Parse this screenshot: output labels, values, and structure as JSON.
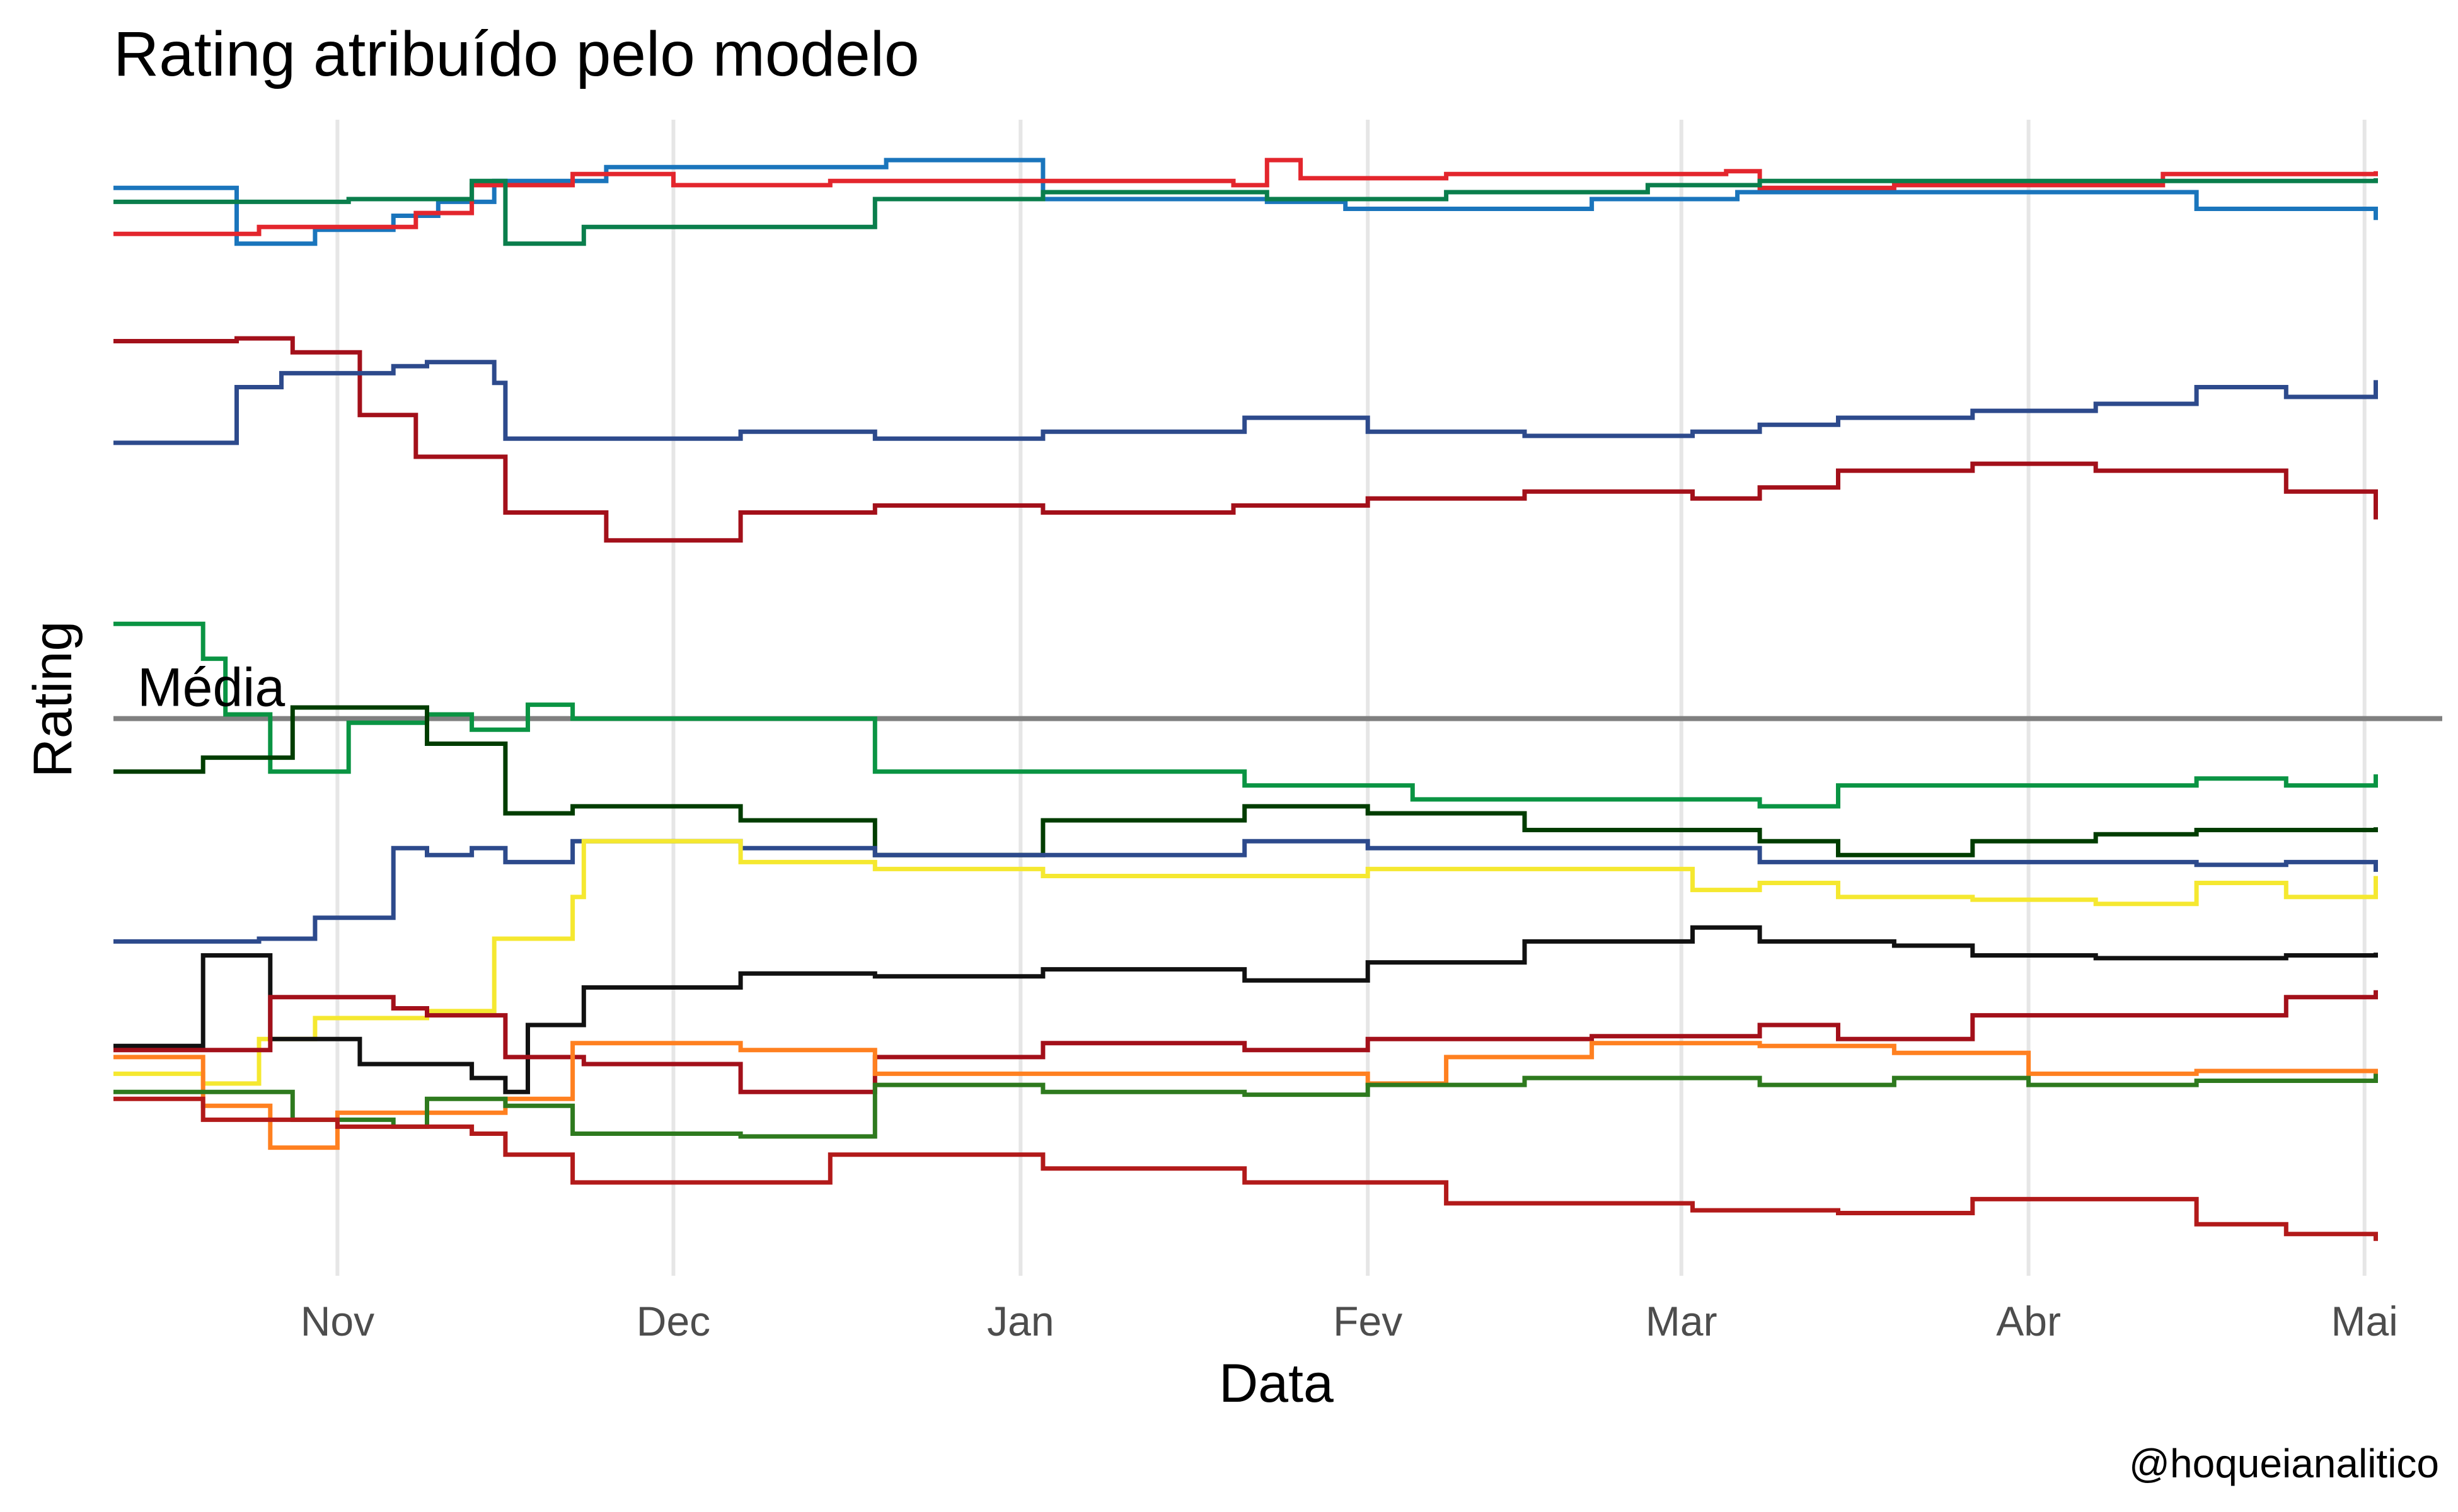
{
  "chart_data": {
    "type": "line",
    "line_style": "step",
    "title": "Rating atribuído pelo modelo",
    "xlabel": "Data",
    "ylabel": "Rating",
    "caption": "@hoqueianalitico",
    "reference_line": {
      "y": 0,
      "label": "Média"
    },
    "x_ticks": [
      "2021-11-01",
      "2021-12-01",
      "2022-01-01",
      "2022-02-01",
      "2022-03-01",
      "2022-04-01",
      "2022-05-01"
    ],
    "x_tick_labels": [
      "Nov",
      "Dec",
      "Jan",
      "Fev",
      "Mar",
      "Abr",
      "Mai"
    ],
    "xlim": [
      "2021-10-12",
      "2022-05-04"
    ],
    "ylim": [
      -400,
      430
    ],
    "y_ticks_shown": false,
    "grid": "vertical major only",
    "legend": "none",
    "series": [
      {
        "color": "#1a75bc",
        "points": [
          [
            "2021-10-12",
            381
          ],
          [
            "2021-10-23",
            341
          ],
          [
            "2021-10-30",
            351
          ],
          [
            "2021-11-06",
            361
          ],
          [
            "2021-11-10",
            371
          ],
          [
            "2021-11-15",
            386
          ],
          [
            "2021-11-25",
            396
          ],
          [
            "2021-12-20",
            401
          ],
          [
            "2022-01-03",
            373
          ],
          [
            "2022-01-23",
            371
          ],
          [
            "2022-01-30",
            366
          ],
          [
            "2022-02-21",
            373
          ],
          [
            "2022-03-06",
            378
          ],
          [
            "2022-03-28",
            378
          ],
          [
            "2022-04-01",
            378
          ],
          [
            "2022-04-16",
            366
          ],
          [
            "2022-05-02",
            358
          ]
        ]
      },
      {
        "color": "#e3262d",
        "points": [
          [
            "2021-10-12",
            348
          ],
          [
            "2021-10-25",
            353
          ],
          [
            "2021-11-08",
            363
          ],
          [
            "2021-11-13",
            383
          ],
          [
            "2021-11-22",
            391
          ],
          [
            "2021-12-01",
            383
          ],
          [
            "2021-12-15",
            386
          ],
          [
            "2022-01-20",
            383
          ],
          [
            "2022-01-23",
            401
          ],
          [
            "2022-01-26",
            388
          ],
          [
            "2022-02-08",
            391
          ],
          [
            "2022-03-05",
            393
          ],
          [
            "2022-03-08",
            381
          ],
          [
            "2022-03-20",
            383
          ],
          [
            "2022-04-07",
            383
          ],
          [
            "2022-04-13",
            391
          ],
          [
            "2022-05-02",
            393
          ]
        ]
      },
      {
        "color": "#0a7e4c",
        "points": [
          [
            "2021-10-12",
            371
          ],
          [
            "2021-11-02",
            373
          ],
          [
            "2021-11-13",
            386
          ],
          [
            "2021-11-16",
            341
          ],
          [
            "2021-11-23",
            353
          ],
          [
            "2021-12-19",
            373
          ],
          [
            "2022-01-03",
            378
          ],
          [
            "2022-01-23",
            373
          ],
          [
            "2022-02-08",
            378
          ],
          [
            "2022-02-26",
            383
          ],
          [
            "2022-03-08",
            386
          ],
          [
            "2022-03-23",
            386
          ],
          [
            "2022-04-16",
            386
          ],
          [
            "2022-05-02",
            388
          ]
        ]
      },
      {
        "color": "#a3101a",
        "points": [
          [
            "2021-10-12",
            271
          ],
          [
            "2021-10-23",
            273
          ],
          [
            "2021-10-28",
            263
          ],
          [
            "2021-11-03",
            218
          ],
          [
            "2021-11-08",
            188
          ],
          [
            "2021-11-16",
            148
          ],
          [
            "2021-11-25",
            128
          ],
          [
            "2021-12-07",
            148
          ],
          [
            "2021-12-19",
            153
          ],
          [
            "2022-01-03",
            148
          ],
          [
            "2022-01-20",
            153
          ],
          [
            "2022-02-01",
            158
          ],
          [
            "2022-02-15",
            163
          ],
          [
            "2022-03-02",
            158
          ],
          [
            "2022-03-08",
            166
          ],
          [
            "2022-03-15",
            178
          ],
          [
            "2022-03-27",
            183
          ],
          [
            "2022-04-07",
            178
          ],
          [
            "2022-04-24",
            163
          ],
          [
            "2022-05-02",
            143
          ]
        ]
      },
      {
        "color": "#2d4a8c",
        "points": [
          [
            "2021-10-12",
            198
          ],
          [
            "2021-10-23",
            238
          ],
          [
            "2021-10-27",
            248
          ],
          [
            "2021-11-06",
            253
          ],
          [
            "2021-11-09",
            256
          ],
          [
            "2021-11-15",
            241
          ],
          [
            "2021-11-16",
            201
          ],
          [
            "2021-12-07",
            206
          ],
          [
            "2021-12-19",
            201
          ],
          [
            "2022-01-03",
            206
          ],
          [
            "2022-01-21",
            216
          ],
          [
            "2022-02-01",
            206
          ],
          [
            "2022-02-15",
            203
          ],
          [
            "2022-03-02",
            206
          ],
          [
            "2022-03-08",
            211
          ],
          [
            "2022-03-15",
            216
          ],
          [
            "2022-03-27",
            221
          ],
          [
            "2022-04-07",
            226
          ],
          [
            "2022-04-16",
            238
          ],
          [
            "2022-04-24",
            231
          ],
          [
            "2022-05-02",
            243
          ]
        ]
      },
      {
        "color": "#0a9443",
        "points": [
          [
            "2021-10-12",
            68
          ],
          [
            "2021-10-20",
            43
          ],
          [
            "2021-10-22",
            3
          ],
          [
            "2021-10-26",
            -38
          ],
          [
            "2021-11-02",
            -3
          ],
          [
            "2021-11-09",
            3
          ],
          [
            "2021-11-13",
            -8
          ],
          [
            "2021-11-16",
            -8
          ],
          [
            "2021-11-18",
            10
          ],
          [
            "2021-11-22",
            0
          ],
          [
            "2021-12-19",
            -38
          ],
          [
            "2022-01-21",
            -48
          ],
          [
            "2022-02-05",
            -58
          ],
          [
            "2022-03-08",
            -63
          ],
          [
            "2022-03-15",
            -48
          ],
          [
            "2022-04-16",
            -43
          ],
          [
            "2022-04-24",
            -48
          ],
          [
            "2022-05-02",
            -40
          ]
        ]
      },
      {
        "color": "#003d00",
        "points": [
          [
            "2021-10-12",
            -38
          ],
          [
            "2021-10-20",
            -28
          ],
          [
            "2021-10-28",
            8
          ],
          [
            "2021-11-09",
            -18
          ],
          [
            "2021-11-16",
            -68
          ],
          [
            "2021-11-22",
            -63
          ],
          [
            "2021-12-07",
            -73
          ],
          [
            "2021-12-19",
            -98
          ],
          [
            "2022-01-03",
            -73
          ],
          [
            "2022-01-21",
            -63
          ],
          [
            "2022-02-01",
            -68
          ],
          [
            "2022-02-15",
            -80
          ],
          [
            "2022-03-08",
            -88
          ],
          [
            "2022-03-15",
            -98
          ],
          [
            "2022-03-27",
            -88
          ],
          [
            "2022-04-07",
            -83
          ],
          [
            "2022-04-16",
            -80
          ],
          [
            "2022-05-02",
            -78
          ]
        ]
      },
      {
        "color": "#2d4a8c",
        "points": [
          [
            "2021-10-12",
            -160
          ],
          [
            "2021-10-25",
            -158
          ],
          [
            "2021-10-30",
            -143
          ],
          [
            "2021-11-06",
            -93
          ],
          [
            "2021-11-09",
            -98
          ],
          [
            "2021-11-13",
            -93
          ],
          [
            "2021-11-16",
            -103
          ],
          [
            "2021-11-22",
            -88
          ],
          [
            "2021-12-07",
            -93
          ],
          [
            "2021-12-19",
            -98
          ],
          [
            "2022-01-21",
            -88
          ],
          [
            "2022-02-01",
            -93
          ],
          [
            "2022-02-15",
            -93
          ],
          [
            "2022-03-08",
            -103
          ],
          [
            "2022-04-01",
            -103
          ],
          [
            "2022-04-16",
            -105
          ],
          [
            "2022-04-24",
            -103
          ],
          [
            "2022-05-02",
            -110
          ]
        ]
      },
      {
        "color": "#f5e830",
        "points": [
          [
            "2021-10-12",
            -255
          ],
          [
            "2021-10-20",
            -262
          ],
          [
            "2021-10-25",
            -230
          ],
          [
            "2021-10-30",
            -215
          ],
          [
            "2021-11-09",
            -210
          ],
          [
            "2021-11-15",
            -158
          ],
          [
            "2021-11-22",
            -128
          ],
          [
            "2021-11-23",
            -88
          ],
          [
            "2021-12-07",
            -103
          ],
          [
            "2021-12-19",
            -108
          ],
          [
            "2022-01-03",
            -113
          ],
          [
            "2022-01-21",
            -113
          ],
          [
            "2022-02-01",
            -108
          ],
          [
            "2022-02-15",
            -108
          ],
          [
            "2022-03-02",
            -123
          ],
          [
            "2022-03-08",
            -118
          ],
          [
            "2022-03-15",
            -128
          ],
          [
            "2022-03-27",
            -130
          ],
          [
            "2022-04-07",
            -133
          ],
          [
            "2022-04-16",
            -118
          ],
          [
            "2022-04-24",
            -128
          ],
          [
            "2022-05-02",
            -113
          ]
        ]
      },
      {
        "color": "#111111",
        "points": [
          [
            "2021-10-12",
            -235
          ],
          [
            "2021-10-20",
            -170
          ],
          [
            "2021-10-26",
            -230
          ],
          [
            "2021-11-03",
            -248
          ],
          [
            "2021-11-13",
            -258
          ],
          [
            "2021-11-16",
            -268
          ],
          [
            "2021-11-18",
            -220
          ],
          [
            "2021-11-23",
            -193
          ],
          [
            "2021-12-07",
            -183
          ],
          [
            "2021-12-19",
            -185
          ],
          [
            "2022-01-03",
            -180
          ],
          [
            "2022-01-21",
            -188
          ],
          [
            "2022-02-01",
            -175
          ],
          [
            "2022-02-15",
            -160
          ],
          [
            "2022-03-02",
            -150
          ],
          [
            "2022-03-08",
            -160
          ],
          [
            "2022-03-20",
            -163
          ],
          [
            "2022-03-27",
            -170
          ],
          [
            "2022-04-07",
            -172
          ],
          [
            "2022-04-16",
            -172
          ],
          [
            "2022-04-24",
            -170
          ],
          [
            "2022-05-02",
            -168
          ]
        ]
      },
      {
        "color": "#a3101a",
        "points": [
          [
            "2021-10-12",
            -238
          ],
          [
            "2021-10-26",
            -200
          ],
          [
            "2021-11-06",
            -208
          ],
          [
            "2021-11-09",
            -213
          ],
          [
            "2021-11-13",
            -213
          ],
          [
            "2021-11-16",
            -243
          ],
          [
            "2021-11-23",
            -248
          ],
          [
            "2021-12-07",
            -268
          ],
          [
            "2021-12-19",
            -243
          ],
          [
            "2022-01-03",
            -233
          ],
          [
            "2022-01-21",
            -238
          ],
          [
            "2022-02-01",
            -230
          ],
          [
            "2022-02-21",
            -228
          ],
          [
            "2022-03-08",
            -220
          ],
          [
            "2022-03-15",
            -230
          ],
          [
            "2022-03-27",
            -213
          ],
          [
            "2022-04-07",
            -213
          ],
          [
            "2022-04-16",
            -213
          ],
          [
            "2022-04-24",
            -200
          ],
          [
            "2022-05-02",
            -195
          ]
        ]
      },
      {
        "color": "#ff8020",
        "points": [
          [
            "2021-10-12",
            -243
          ],
          [
            "2021-10-20",
            -278
          ],
          [
            "2021-10-26",
            -308
          ],
          [
            "2021-11-01",
            -283
          ],
          [
            "2021-11-06",
            -283
          ],
          [
            "2021-11-16",
            -273
          ],
          [
            "2021-11-22",
            -233
          ],
          [
            "2021-12-07",
            -238
          ],
          [
            "2021-12-19",
            -255
          ],
          [
            "2022-01-21",
            -255
          ],
          [
            "2022-02-01",
            -262
          ],
          [
            "2022-02-08",
            -243
          ],
          [
            "2022-02-21",
            -233
          ],
          [
            "2022-03-08",
            -235
          ],
          [
            "2022-03-20",
            -240
          ],
          [
            "2022-04-01",
            -255
          ],
          [
            "2022-04-16",
            -253
          ],
          [
            "2022-05-02",
            -258
          ]
        ]
      },
      {
        "color": "#2e7a1e",
        "points": [
          [
            "2021-10-12",
            -268
          ],
          [
            "2021-10-28",
            -288
          ],
          [
            "2021-11-06",
            -293
          ],
          [
            "2021-11-09",
            -273
          ],
          [
            "2021-11-16",
            -278
          ],
          [
            "2021-11-22",
            -298
          ],
          [
            "2021-12-07",
            -300
          ],
          [
            "2021-12-19",
            -263
          ],
          [
            "2022-01-03",
            -268
          ],
          [
            "2022-01-21",
            -270
          ],
          [
            "2022-02-01",
            -263
          ],
          [
            "2022-02-15",
            -258
          ],
          [
            "2022-03-08",
            -263
          ],
          [
            "2022-03-20",
            -258
          ],
          [
            "2022-04-01",
            -263
          ],
          [
            "2022-04-07",
            -263
          ],
          [
            "2022-04-16",
            -260
          ],
          [
            "2022-05-02",
            -255
          ]
        ]
      },
      {
        "color": "#b21a1a",
        "points": [
          [
            "2021-10-12",
            -273
          ],
          [
            "2021-10-20",
            -288
          ],
          [
            "2021-11-01",
            -293
          ],
          [
            "2021-11-13",
            -298
          ],
          [
            "2021-11-16",
            -313
          ],
          [
            "2021-11-22",
            -333
          ],
          [
            "2021-12-15",
            -313
          ],
          [
            "2022-01-03",
            -323
          ],
          [
            "2022-01-21",
            -333
          ],
          [
            "2022-02-08",
            -348
          ],
          [
            "2022-03-02",
            -353
          ],
          [
            "2022-03-15",
            -355
          ],
          [
            "2022-03-27",
            -345
          ],
          [
            "2022-04-16",
            -363
          ],
          [
            "2022-04-24",
            -370
          ],
          [
            "2022-05-02",
            -375
          ]
        ]
      }
    ]
  }
}
